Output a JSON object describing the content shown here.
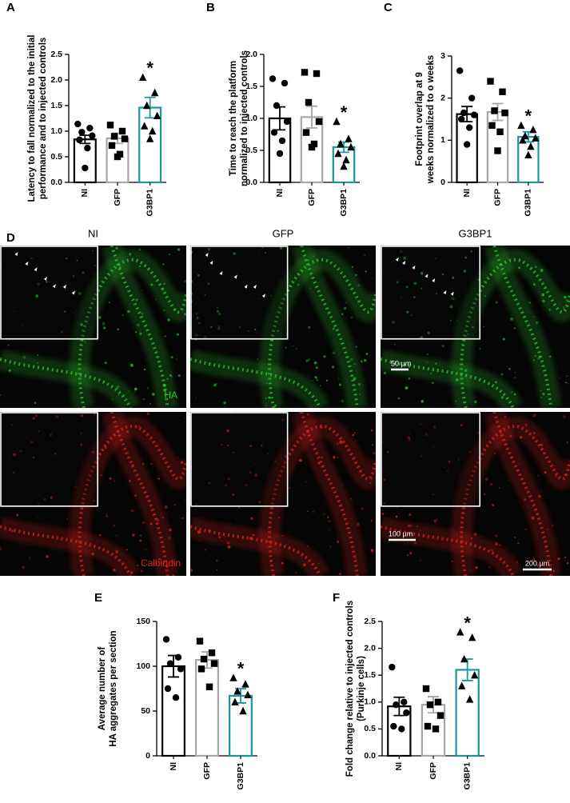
{
  "chart_data": [
    {
      "type": "bar",
      "panel": "A",
      "ylabel": [
        "Latency to fall normalized to the initial",
        "performance and to injected controls"
      ],
      "categories": [
        "NI",
        "GFP",
        "G3BP1"
      ],
      "values": [
        0.84,
        0.86,
        1.46
      ],
      "errors": [
        0.08,
        0.1,
        0.2
      ],
      "points": [
        [
          1.14,
          1.06,
          0.98,
          0.91,
          0.83,
          0.67,
          0.28
        ],
        [
          1.12,
          1.0,
          0.9,
          0.85,
          0.72,
          0.55,
          0.5
        ],
        [
          2.05,
          1.75,
          1.5,
          1.3,
          1.1,
          1.0,
          0.85
        ]
      ],
      "colors": [
        "#000000",
        "#a6a6a6",
        "#17999a"
      ],
      "markers": [
        "circle",
        "square",
        "triangle"
      ],
      "ylim": [
        0,
        2.5
      ],
      "yticks": [
        {
          "value": 0,
          "label": "0.0"
        },
        0.5,
        {
          "value": 1,
          "label": "1.0"
        },
        1.5,
        {
          "value": 2,
          "label": "2.0"
        },
        2.5
      ],
      "annotation": "*",
      "annotation_category": "G3BP1"
    },
    {
      "type": "bar",
      "panel": "B",
      "ylabel": [
        "Time to reach the platform",
        "normalized to injected controls"
      ],
      "categories": [
        "NI",
        "GFP",
        "G3BP1"
      ],
      "values": [
        1.0,
        1.02,
        0.55
      ],
      "errors": [
        0.18,
        0.17,
        0.08
      ],
      "points": [
        [
          1.62,
          1.55,
          1.2,
          0.95,
          0.78,
          0.65,
          0.45
        ],
        [
          1.72,
          1.7,
          1.25,
          0.95,
          0.78,
          0.6,
          0.55
        ],
        [
          0.95,
          0.68,
          0.6,
          0.55,
          0.45,
          0.35,
          0.25
        ]
      ],
      "colors": [
        "#000000",
        "#a6a6a6",
        "#17999a"
      ],
      "markers": [
        "circle",
        "square",
        "triangle"
      ],
      "ylim": [
        0,
        2
      ],
      "yticks": [
        {
          "value": 0,
          "label": "0.0"
        },
        0.5,
        {
          "value": 1,
          "label": "1.0"
        },
        1.5,
        {
          "value": 2,
          "label": "2.0"
        }
      ],
      "annotation": "*",
      "annotation_category": "G3BP1"
    },
    {
      "type": "bar",
      "panel": "C",
      "ylabel": [
        "Footprint overlap  at  9",
        "weeks normalized to o weeks"
      ],
      "categories": [
        "NI",
        "GFP",
        "G3BP1"
      ],
      "values": [
        1.62,
        1.67,
        1.08
      ],
      "errors": [
        0.18,
        0.2,
        0.12
      ],
      "points": [
        [
          2.65,
          2.0,
          1.65,
          1.6,
          1.5,
          1.3,
          0.9
        ],
        [
          2.4,
          2.15,
          1.7,
          1.65,
          1.35,
          1.2,
          0.75
        ],
        [
          1.35,
          1.25,
          1.1,
          1.05,
          1.0,
          0.85,
          0.65
        ]
      ],
      "colors": [
        "#000000",
        "#a6a6a6",
        "#17999a"
      ],
      "markers": [
        "circle",
        "square",
        "triangle"
      ],
      "ylim": [
        0,
        3
      ],
      "yticks": [
        0,
        1,
        2,
        3
      ],
      "annotation": "*",
      "annotation_category": "G3BP1"
    },
    {
      "type": "bar",
      "panel": "E",
      "ylabel": [
        "Average number of",
        "HA aggregates per section"
      ],
      "categories": [
        "NI",
        "GFP",
        "G3BP1"
      ],
      "values": [
        100,
        107,
        67
      ],
      "errors": [
        12,
        9,
        8
      ],
      "points": [
        [
          130,
          110,
          103,
          97,
          75,
          65
        ],
        [
          128,
          115,
          108,
          103,
          97,
          77
        ],
        [
          87,
          80,
          72,
          68,
          60,
          50
        ]
      ],
      "colors": [
        "#000000",
        "#a6a6a6",
        "#17999a"
      ],
      "markers": [
        "circle",
        "square",
        "triangle"
      ],
      "ylim": [
        0,
        150
      ],
      "yticks": [
        0,
        50,
        100,
        150
      ],
      "annotation": "*",
      "annotation_category": "G3BP1"
    },
    {
      "type": "bar",
      "panel": "F",
      "ylabel": [
        "Fold change relative to injected controls",
        "(Purkinje cells)"
      ],
      "categories": [
        "NI",
        "GFP",
        "G3BP1"
      ],
      "values": [
        0.92,
        0.95,
        1.6
      ],
      "errors": [
        0.17,
        0.15,
        0.2
      ],
      "points": [
        [
          1.65,
          1.0,
          0.95,
          0.8,
          0.55,
          0.5
        ],
        [
          1.25,
          1.0,
          0.95,
          0.75,
          0.55,
          0.5
        ],
        [
          2.3,
          2.2,
          1.8,
          1.5,
          1.3,
          1.05
        ]
      ],
      "colors": [
        "#000000",
        "#a6a6a6",
        "#17999a"
      ],
      "markers": [
        "circle",
        "square",
        "triangle"
      ],
      "ylim": [
        0,
        2.5
      ],
      "yticks": [
        {
          "value": 0,
          "label": "0.0"
        },
        0.5,
        {
          "value": 1,
          "label": "1.0"
        },
        1.5,
        {
          "value": 2,
          "label": "2.0"
        },
        2.5
      ],
      "annotation": "*",
      "annotation_category": "G3BP1"
    }
  ],
  "image_panel": {
    "panel": "D",
    "columns": [
      "NI",
      "GFP",
      "G3BP1"
    ],
    "rows": [
      "HA",
      "Calbindin"
    ],
    "row_colors": [
      "#2fc42f",
      "#e0231c"
    ],
    "scale_bars": [
      "50 µm",
      "100 µm",
      "200 µm"
    ]
  }
}
